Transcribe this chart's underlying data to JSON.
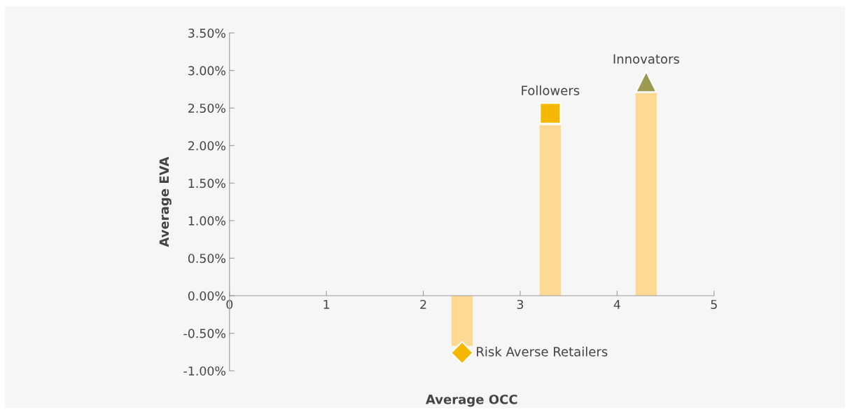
{
  "chart_data": {
    "type": "bar",
    "xlabel": "Average OCC",
    "ylabel": "Average EVA",
    "xlim": [
      0,
      5
    ],
    "xticks": [
      0,
      1,
      2,
      3,
      4,
      5
    ],
    "ylim": [
      -1,
      3.5
    ],
    "yticks": [
      {
        "value": -1,
        "label": "-1.00%"
      },
      {
        "value": -0.5,
        "label": "-0.50%"
      },
      {
        "value": 0,
        "label": "0.00%"
      },
      {
        "value": 0.5,
        "label": "0.50%"
      },
      {
        "value": 1,
        "label": "1.00%"
      },
      {
        "value": 1.5,
        "label": "1.50%"
      },
      {
        "value": 2,
        "label": "2.00%"
      },
      {
        "value": 2.5,
        "label": "2.50%"
      },
      {
        "value": 3,
        "label": "3.00%"
      },
      {
        "value": 3.5,
        "label": "3.50%"
      }
    ],
    "grid": false,
    "legend": false,
    "series": [
      {
        "color": "#fdd994",
        "x": [
          2.4,
          3.31,
          4.3
        ],
        "values": [
          -0.67,
          2.27,
          2.7
        ]
      },
      {
        "type": "scatter",
        "name": "Risk Averse Retailers",
        "color": "#f5b800",
        "marker": "diamond",
        "x": [
          2.4
        ],
        "values": [
          -0.76
        ]
      },
      {
        "type": "scatter",
        "name": "Followers",
        "color": "#f5b800",
        "marker": "square",
        "x": [
          3.31
        ],
        "values": [
          2.43
        ]
      },
      {
        "type": "scatter",
        "name": "Innovators",
        "color": "#9c9a50",
        "marker": "triangle",
        "x": [
          4.3
        ],
        "values": [
          2.85
        ]
      }
    ]
  }
}
